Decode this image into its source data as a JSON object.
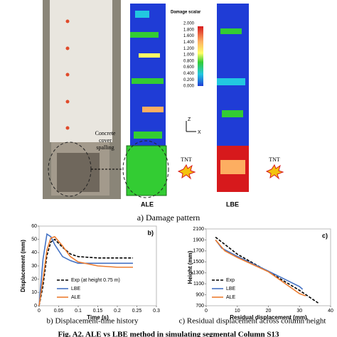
{
  "figure": {
    "damage_label": "Damage scalar",
    "colorbar_labels": [
      "2.000",
      "1.800",
      "1.600",
      "1.400",
      "1.200",
      "1.000",
      "0.800",
      "0.600",
      "0.400",
      "0.200",
      "0.000"
    ],
    "ale_label": "ALE",
    "lbe_label": "LBE",
    "tnt_labels": [
      "TNT",
      "TNT"
    ],
    "spalling_label": [
      "Concrete",
      "cover",
      "spalling"
    ],
    "axis_z": "Z",
    "axis_x": "X",
    "caption_a": "a) Damage pattern",
    "caption_b": "b) Displacement-time history",
    "caption_c": "c) Residual displacement across column height",
    "fig_caption": "Fig. A2. ALE vs LBE method in simulating segmental Column S13"
  },
  "chart_data": [
    {
      "type": "line",
      "panel_label": "b)",
      "x_label": "Time (s)",
      "y_label": "Displacement (mm)",
      "x": [
        0,
        0.01,
        0.02,
        0.03,
        0.04,
        0.06,
        0.08,
        0.1,
        0.15,
        0.2,
        0.24
      ],
      "series": [
        {
          "name": "Exp (at height 0.75 m)",
          "color": "#000000",
          "dashed": true,
          "values": [
            0,
            15,
            38,
            48,
            50,
            44,
            39,
            37,
            36,
            36,
            36
          ]
        },
        {
          "name": "LBE",
          "color": "#4472c4",
          "dashed": false,
          "values": [
            0,
            35,
            54,
            52,
            46,
            37,
            34,
            32,
            32,
            32,
            32
          ]
        },
        {
          "name": "ALE",
          "color": "#ed7d31",
          "dashed": false,
          "values": [
            0,
            20,
            42,
            51,
            52,
            45,
            37,
            33,
            30,
            29,
            29
          ]
        }
      ],
      "xlim": [
        0,
        0.3
      ],
      "xticks": [
        0,
        0.05,
        0.1,
        0.15,
        0.2,
        0.25,
        0.3
      ],
      "ylim": [
        0,
        60
      ],
      "yticks": [
        0,
        10,
        20,
        30,
        40,
        50,
        60
      ],
      "legend": "lower center",
      "grid": false
    },
    {
      "type": "line",
      "panel_label": "c)",
      "x_label": "Residual displacement (mm)",
      "y_label": "Height (mm)",
      "series": [
        {
          "name": "Exp",
          "color": "#000000",
          "dashed": true,
          "x": [
            3,
            10,
            20,
            30,
            36
          ],
          "values": [
            1950,
            1640,
            1320,
            980,
            750
          ]
        },
        {
          "name": "LBE",
          "color": "#4472c4",
          "dashed": false,
          "x": [
            3,
            5,
            10,
            20,
            30,
            31
          ],
          "values": [
            1900,
            1750,
            1600,
            1330,
            1050,
            1000
          ]
        },
        {
          "name": "ALE",
          "color": "#ed7d31",
          "dashed": false,
          "x": [
            3,
            6,
            10,
            20,
            30,
            32
          ],
          "values": [
            1900,
            1700,
            1580,
            1320,
            920,
            880
          ]
        }
      ],
      "xlim": [
        0,
        40
      ],
      "xticks": [
        0,
        10,
        20,
        30,
        40
      ],
      "ylim": [
        700,
        2100
      ],
      "yticks": [
        700,
        900,
        1100,
        1300,
        1500,
        1700,
        1900,
        2100
      ],
      "legend": "lower left",
      "grid": false
    }
  ]
}
